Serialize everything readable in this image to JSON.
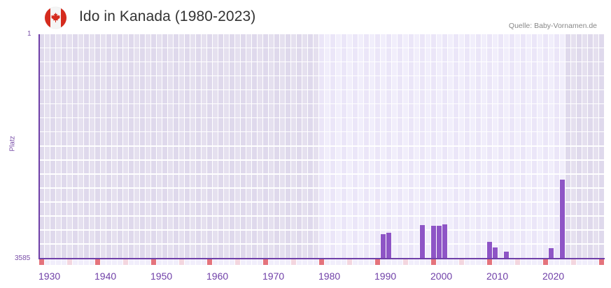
{
  "header": {
    "title": "Ido in Kanada (1980-2023)",
    "source": "Quelle: Baby-Vornamen.de",
    "flag_icon": "canada-flag-icon"
  },
  "colors": {
    "bar": "#8e55c6",
    "axis": "#6f3fa8",
    "decade_marker": "#e4737c",
    "half_decade_marker": "#f3d6df",
    "cell_out_range_a": "#e5e0ef",
    "cell_out_range_b": "#dfd9ec",
    "cell_in_range_a": "#f1eefb",
    "cell_in_range_b": "#ebe6f8",
    "grid_line": "#ffffff"
  },
  "chart_data": {
    "type": "bar",
    "title": "Ido in Kanada (1980-2023)",
    "xlabel": "",
    "ylabel": "Platz",
    "y_inverted": true,
    "ylim": [
      3585,
      1
    ],
    "y_ticks": [
      "1",
      "3585"
    ],
    "x_range": [
      1930,
      2030
    ],
    "x_ticks": [
      "1930",
      "1940",
      "1950",
      "1960",
      "1970",
      "1980",
      "1990",
      "2000",
      "2010",
      "2020"
    ],
    "highlight_range": [
      1980,
      2023
    ],
    "grid": true,
    "legend": null,
    "categories": [
      1991,
      1992,
      1998,
      2000,
      2001,
      2002,
      2010,
      2011,
      2013,
      2021,
      2023
    ],
    "values": [
      3194,
      3172,
      3049,
      3060,
      3060,
      3038,
      3317,
      3406,
      3473,
      3418,
      2323
    ],
    "annotation": "Quelle: Baby-Vornamen.de"
  }
}
